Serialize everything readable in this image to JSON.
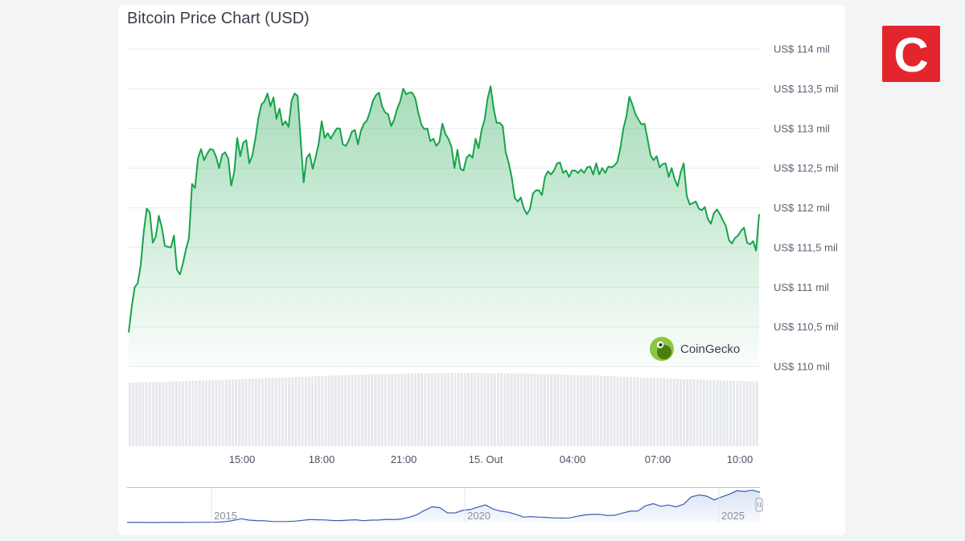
{
  "chart_data": [
    {
      "type": "area",
      "title": "Bitcoin Price Chart (USD)",
      "y_tick_labels": [
        "US$ 114 mil",
        "US$ 113,5 mil",
        "US$ 113 mil",
        "US$ 112,5 mil",
        "US$ 112 mil",
        "US$ 111,5 mil",
        "US$ 111 mil",
        "US$ 110,5 mil",
        "US$ 110 mil"
      ],
      "ylim": [
        110000,
        114000
      ],
      "x_tick_labels": [
        "15:00",
        "18:00",
        "21:00",
        "15. Out",
        "04:00",
        "07:00",
        "10:00"
      ],
      "grid": true,
      "series": [
        {
          "values": [
            110430,
            110750,
            111000,
            111050,
            111280,
            111700,
            111990,
            111940,
            111560,
            111640,
            111900,
            111750,
            111520,
            111510,
            111500,
            111650,
            111220,
            111160,
            111300,
            111480,
            111620,
            112300,
            112250,
            112630,
            112740,
            112600,
            112680,
            112740,
            112730,
            112640,
            112500,
            112670,
            112700,
            112620,
            112280,
            112450,
            112880,
            112650,
            112820,
            112850,
            112560,
            112660,
            112870,
            113130,
            113300,
            113340,
            113440,
            113280,
            113390,
            113120,
            113250,
            113040,
            113090,
            113020,
            113350,
            113440,
            113410,
            112870,
            112320,
            112630,
            112680,
            112490,
            112640,
            112810,
            113090,
            112880,
            112940,
            112870,
            112940,
            113000,
            113000,
            112800,
            112780,
            112850,
            112960,
            112980,
            112800,
            112970,
            113060,
            113100,
            113210,
            113350,
            113420,
            113450,
            113280,
            113200,
            113180,
            113030,
            113110,
            113250,
            113340,
            113500,
            113430,
            113450,
            113450,
            113380,
            113200,
            113050,
            112990,
            113000,
            112840,
            112870,
            112780,
            112830,
            113060,
            112930,
            112870,
            112770,
            112500,
            112730,
            112490,
            112470,
            112630,
            112670,
            112630,
            112870,
            112750,
            112980,
            113110,
            113380,
            113530,
            113250,
            113070,
            113070,
            113030,
            112700,
            112560,
            112380,
            112120,
            112080,
            112130,
            111990,
            111920,
            111980,
            112180,
            112220,
            112220,
            112160,
            112390,
            112460,
            112420,
            112470,
            112560,
            112570,
            112440,
            112470,
            112390,
            112470,
            112470,
            112440,
            112480,
            112440,
            112510,
            112520,
            112420,
            112560,
            112420,
            112500,
            112440,
            112520,
            112510,
            112530,
            112580,
            112750,
            113000,
            113150,
            113400,
            113300,
            113180,
            113110,
            113050,
            113060,
            112870,
            112660,
            112600,
            112650,
            112510,
            112550,
            112560,
            112390,
            112500,
            112360,
            112270,
            112450,
            112560,
            112150,
            112040,
            112060,
            112080,
            111990,
            111970,
            112010,
            111860,
            111800,
            111930,
            111980,
            111920,
            111840,
            111770,
            111590,
            111550,
            111620,
            111650,
            111710,
            111750,
            111560,
            111540,
            111580,
            111460,
            111920
          ]
        }
      ]
    },
    {
      "type": "area",
      "x_tick_labels": [
        "2015",
        "2020",
        "2025"
      ],
      "series": [
        {
          "values": [
            200,
            180,
            150,
            120,
            110,
            150,
            210,
            350,
            500,
            650,
            800,
            1000,
            1500,
            3500,
            8000,
            14000,
            9000,
            7000,
            6500,
            4000,
            3700,
            4000,
            5000,
            8000,
            11000,
            10000,
            9500,
            7500,
            7200,
            9000,
            10000,
            6800,
            9000,
            9200,
            11500,
            10800,
            13000,
            19000,
            29000,
            45000,
            58000,
            55000,
            36000,
            35000,
            45000,
            48000,
            57000,
            65000,
            50000,
            42000,
            38000,
            30000,
            20000,
            22000,
            20000,
            19000,
            17000,
            16500,
            17000,
            23000,
            28000,
            30000,
            30500,
            26000,
            27000,
            35000,
            42000,
            43000,
            62000,
            70000,
            60000,
            65000,
            58000,
            68000,
            95000,
            102000,
            98000,
            84000,
            95000,
            105000,
            118000,
            115000,
            120000,
            112000
          ]
        }
      ]
    }
  ],
  "watermark": {
    "label": "CoinGecko"
  },
  "logo": {
    "letter": "C"
  },
  "colors": {
    "line": "#16a34a",
    "brand": "#e3262e"
  }
}
